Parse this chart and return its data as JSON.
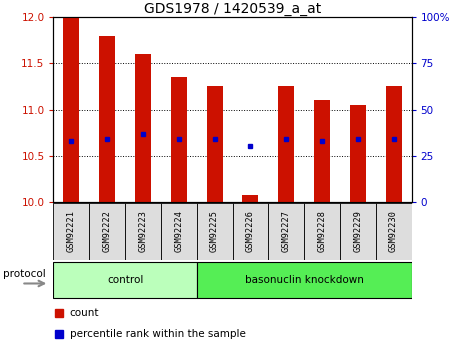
{
  "title": "GDS1978 / 1420539_a_at",
  "samples": [
    "GSM92221",
    "GSM92222",
    "GSM92223",
    "GSM92224",
    "GSM92225",
    "GSM92226",
    "GSM92227",
    "GSM92228",
    "GSM92229",
    "GSM92230"
  ],
  "count_values": [
    12.0,
    11.8,
    11.6,
    11.35,
    11.25,
    10.07,
    11.25,
    11.1,
    11.05,
    11.25
  ],
  "percentile_values": [
    33,
    34,
    37,
    34,
    34,
    30,
    34,
    33,
    34,
    34
  ],
  "ylim_left": [
    10,
    12
  ],
  "ylim_right": [
    0,
    100
  ],
  "yticks_left": [
    10,
    10.5,
    11,
    11.5,
    12
  ],
  "yticks_right": [
    0,
    25,
    50,
    75,
    100
  ],
  "bar_color": "#cc1100",
  "dot_color": "#0000cc",
  "bar_width": 0.45,
  "groups": [
    {
      "label": "control",
      "start": 0,
      "end": 3,
      "color": "#bbffbb"
    },
    {
      "label": "basonuclin knockdown",
      "start": 4,
      "end": 9,
      "color": "#55ee55"
    }
  ],
  "protocol_label": "protocol",
  "legend_items": [
    {
      "label": "count",
      "color": "#cc1100"
    },
    {
      "label": "percentile rank within the sample",
      "color": "#0000cc"
    }
  ],
  "background_color": "#ffffff",
  "title_fontsize": 10,
  "tick_fontsize": 7.5,
  "sample_fontsize": 6.2,
  "group_fontsize": 7.5,
  "axis_label_color_left": "#cc1100",
  "axis_label_color_right": "#0000cc"
}
